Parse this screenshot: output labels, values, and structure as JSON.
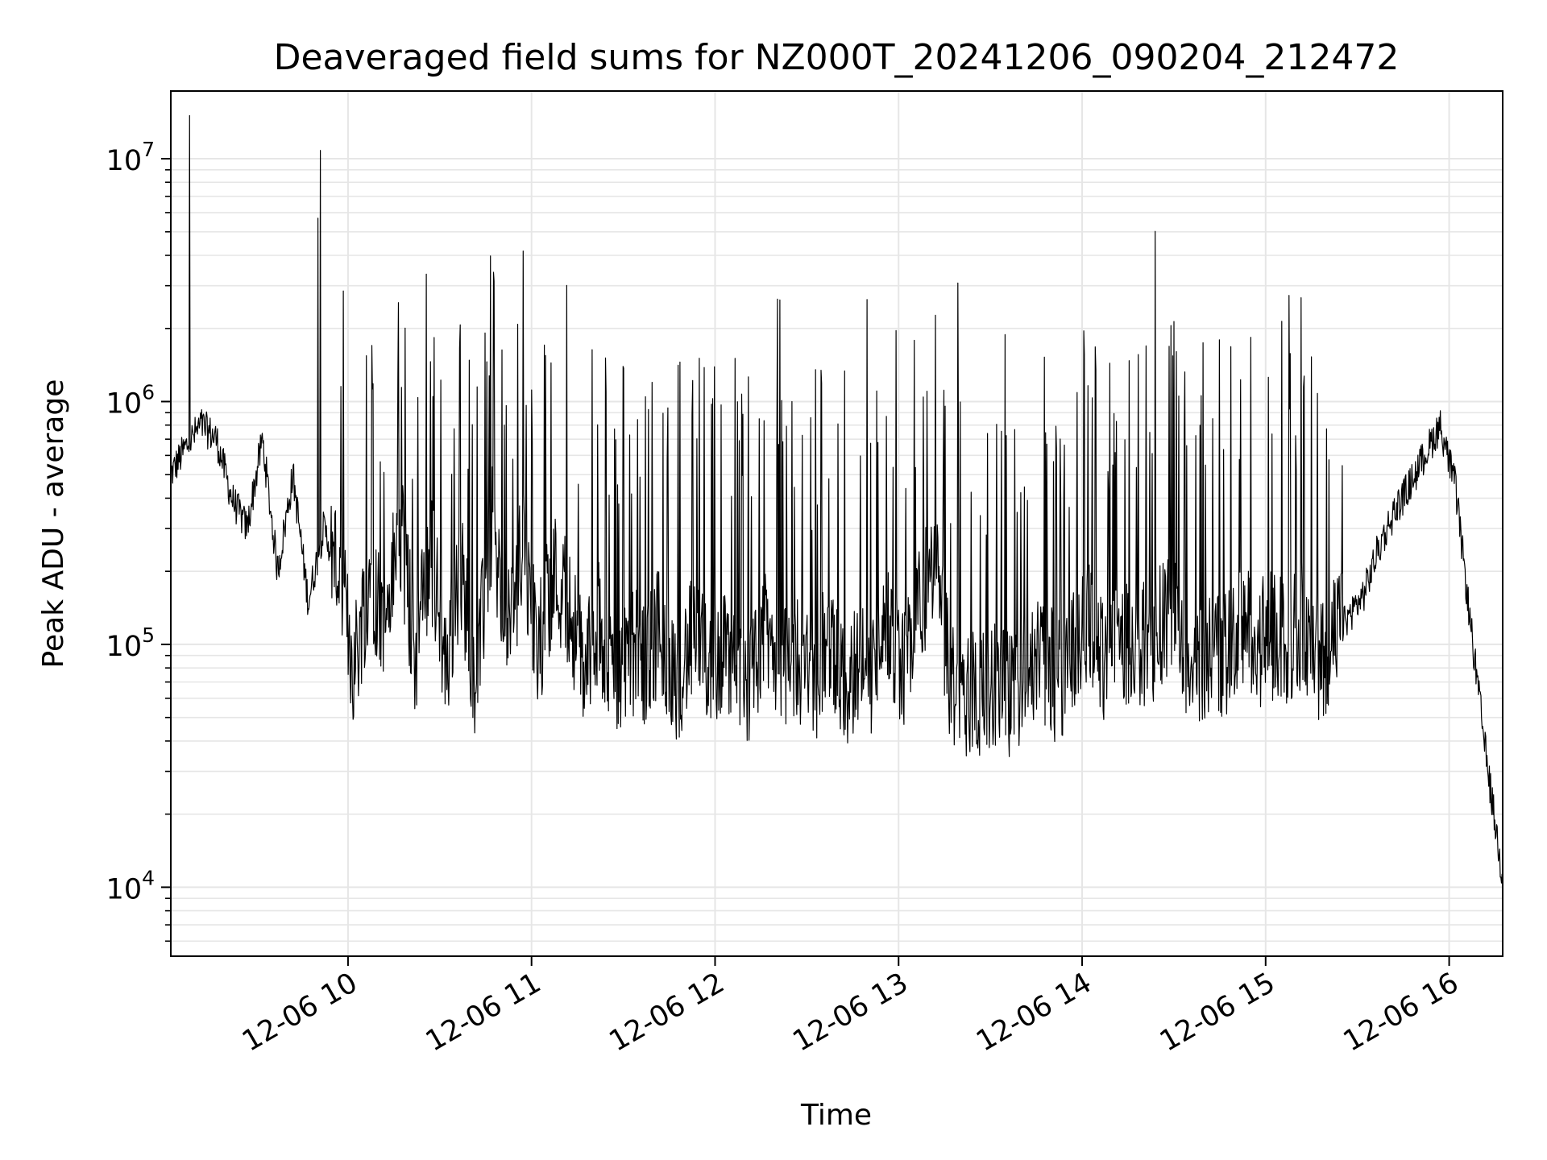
{
  "chart_data": {
    "type": "line",
    "title": "Deaveraged field sums for NZ000T_20241206_090204_212472",
    "xlabel": "Time",
    "ylabel": "Peak ADU - average",
    "x_scale": "time",
    "y_scale": "log",
    "xlim": [
      "2024-12-06T09:02:04",
      "2024-12-06T16:17:30"
    ],
    "ylim": [
      5200,
      19000000
    ],
    "x_ticks": [
      {
        "value": "2024-12-06T10:00:00",
        "label": "12-06 10"
      },
      {
        "value": "2024-12-06T11:00:00",
        "label": "12-06 11"
      },
      {
        "value": "2024-12-06T12:00:00",
        "label": "12-06 12"
      },
      {
        "value": "2024-12-06T13:00:00",
        "label": "12-06 13"
      },
      {
        "value": "2024-12-06T14:00:00",
        "label": "12-06 14"
      },
      {
        "value": "2024-12-06T15:00:00",
        "label": "12-06 15"
      },
      {
        "value": "2024-12-06T16:00:00",
        "label": "12-06 16"
      }
    ],
    "y_ticks": [
      {
        "value": 10000,
        "base": "10",
        "exp": "4"
      },
      {
        "value": 100000,
        "base": "10",
        "exp": "5"
      },
      {
        "value": 1000000,
        "base": "10",
        "exp": "6"
      },
      {
        "value": 10000000,
        "base": "10",
        "exp": "7"
      }
    ],
    "grid": true,
    "grid_minor_y": true,
    "colors": {
      "line": "#000000",
      "grid": "#e6e6e6",
      "axes": "#000000"
    },
    "series": [
      {
        "x": [
          "2024-12-06T09:02:04",
          "2024-12-06T09:07:00",
          "2024-12-06T09:12:00",
          "2024-12-06T09:17:00",
          "2024-12-06T09:22:00",
          "2024-12-06T09:27:00",
          "2024-12-06T09:32:00",
          "2024-12-06T09:37:00",
          "2024-12-06T09:42:00",
          "2024-12-06T09:47:00",
          "2024-12-06T09:52:00",
          "2024-12-06T09:57:00",
          "2024-12-06T10:02:00",
          "2024-12-06T10:07:00",
          "2024-12-06T10:12:00",
          "2024-12-06T10:17:00",
          "2024-12-06T10:22:00",
          "2024-12-06T10:27:00",
          "2024-12-06T10:32:00",
          "2024-12-06T10:37:00",
          "2024-12-06T10:42:00",
          "2024-12-06T10:47:00",
          "2024-12-06T10:52:00",
          "2024-12-06T10:57:00",
          "2024-12-06T11:02:00",
          "2024-12-06T11:07:00",
          "2024-12-06T11:12:00",
          "2024-12-06T11:17:00",
          "2024-12-06T11:22:00",
          "2024-12-06T11:27:00",
          "2024-12-06T11:32:00",
          "2024-12-06T11:37:00",
          "2024-12-06T11:42:00",
          "2024-12-06T11:47:00",
          "2024-12-06T11:52:00",
          "2024-12-06T11:57:00",
          "2024-12-06T12:02:00",
          "2024-12-06T12:07:00",
          "2024-12-06T12:12:00",
          "2024-12-06T12:17:00",
          "2024-12-06T12:22:00",
          "2024-12-06T12:27:00",
          "2024-12-06T12:32:00",
          "2024-12-06T12:37:00",
          "2024-12-06T12:42:00",
          "2024-12-06T12:47:00",
          "2024-12-06T12:52:00",
          "2024-12-06T12:57:00",
          "2024-12-06T13:02:00",
          "2024-12-06T13:07:00",
          "2024-12-06T13:12:00",
          "2024-12-06T13:17:00",
          "2024-12-06T13:22:00",
          "2024-12-06T13:27:00",
          "2024-12-06T13:32:00",
          "2024-12-06T13:37:00",
          "2024-12-06T13:42:00",
          "2024-12-06T13:47:00",
          "2024-12-06T13:52:00",
          "2024-12-06T13:57:00",
          "2024-12-06T14:02:00",
          "2024-12-06T14:07:00",
          "2024-12-06T14:12:00",
          "2024-12-06T14:17:00",
          "2024-12-06T14:22:00",
          "2024-12-06T14:27:00",
          "2024-12-06T14:32:00",
          "2024-12-06T14:37:00",
          "2024-12-06T14:42:00",
          "2024-12-06T14:47:00",
          "2024-12-06T14:52:00",
          "2024-12-06T14:57:00",
          "2024-12-06T15:02:00",
          "2024-12-06T15:07:00",
          "2024-12-06T15:12:00",
          "2024-12-06T15:17:00",
          "2024-12-06T15:22:00",
          "2024-12-06T15:27:00",
          "2024-12-06T15:32:00",
          "2024-12-06T15:37:00",
          "2024-12-06T15:42:00",
          "2024-12-06T15:47:00",
          "2024-12-06T15:52:00",
          "2024-12-06T15:57:00",
          "2024-12-06T16:02:00",
          "2024-12-06T16:07:00",
          "2024-12-06T16:12:00",
          "2024-12-06T16:17:00"
        ],
        "y": [
          500000,
          650000,
          800000,
          700000,
          400000,
          300000,
          700000,
          200000,
          500000,
          150000,
          300000,
          200000,
          80000,
          200000,
          120000,
          300000,
          90000,
          250000,
          80000,
          200000,
          70000,
          300000,
          100000,
          250000,
          90000,
          200000,
          150000,
          80000,
          120000,
          70000,
          100000,
          80000,
          120000,
          70000,
          100000,
          85000,
          90000,
          80000,
          70000,
          110000,
          75000,
          90000,
          70000,
          100000,
          65000,
          85000,
          70000,
          120000,
          80000,
          150000,
          200000,
          70000,
          60000,
          65000,
          70000,
          60000,
          80000,
          90000,
          70000,
          100000,
          120000,
          90000,
          100000,
          110000,
          90000,
          130000,
          110000,
          80000,
          100000,
          90000,
          120000,
          100000,
          110000,
          100000,
          120000,
          90000,
          100000,
          130000,
          160000,
          250000,
          350000,
          450000,
          600000,
          800000,
          450000,
          120000,
          35000,
          12000
        ]
      }
    ]
  }
}
